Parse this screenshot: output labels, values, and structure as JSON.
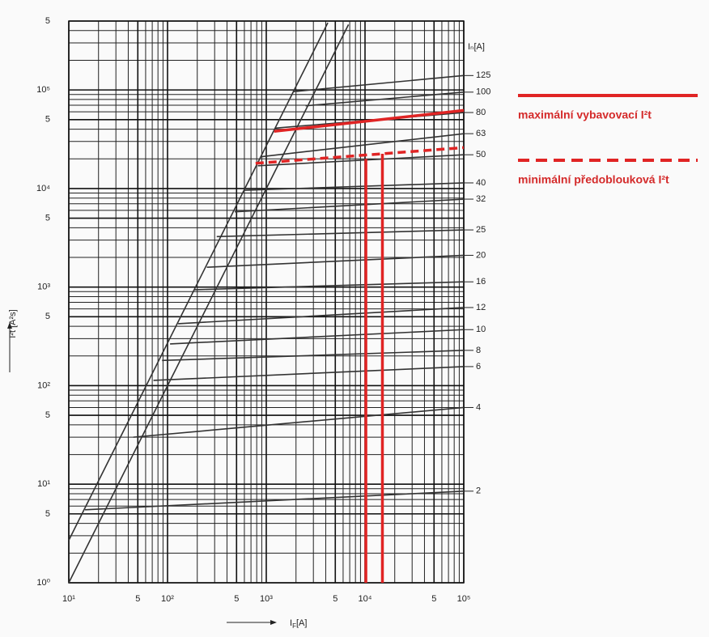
{
  "chart_data": {
    "type": "line",
    "log_x": true,
    "log_y": true,
    "grid": "minor",
    "y_label": "I²t [A²s]",
    "x_label": "I_F[A]",
    "series_title": "Iₙ[A]",
    "xlim": [
      10,
      100000
    ],
    "ylim": [
      1,
      500000
    ],
    "xticks": [
      {
        "value": 10,
        "label": "10¹"
      },
      {
        "value": 50,
        "label": "5"
      },
      {
        "value": 100,
        "label": "10²"
      },
      {
        "value": 500,
        "label": "5"
      },
      {
        "value": 1000,
        "label": "10³"
      },
      {
        "value": 5000,
        "label": "5"
      },
      {
        "value": 10000,
        "label": "10⁴"
      },
      {
        "value": 50000,
        "label": "5"
      },
      {
        "value": 100000,
        "label": "10⁵"
      }
    ],
    "yticks": [
      {
        "value": 1,
        "label": "10⁰"
      },
      {
        "value": 5,
        "label": "5"
      },
      {
        "value": 10,
        "label": "10¹"
      },
      {
        "value": 50,
        "label": "5"
      },
      {
        "value": 100,
        "label": "10²"
      },
      {
        "value": 500,
        "label": "5"
      },
      {
        "value": 1000,
        "label": "10³"
      },
      {
        "value": 5000,
        "label": "5"
      },
      {
        "value": 10000,
        "label": "10⁴"
      },
      {
        "value": 50000,
        "label": "5"
      },
      {
        "value": 100000,
        "label": "10⁵"
      },
      {
        "value": 500000,
        "label": "5"
      }
    ],
    "series": [
      {
        "x": [
          10,
          4200
        ],
        "values": [
          2.7,
          480000
        ],
        "color": "#333333",
        "style": "solid"
      },
      {
        "x": [
          10,
          6800
        ],
        "values": [
          1,
          460000
        ],
        "color": "#333333",
        "style": "solid"
      },
      {
        "name": "125",
        "x": [
          1860,
          100000
        ],
        "values": [
          96000,
          140000
        ],
        "color": "#333333",
        "style": "solid",
        "end_label": true
      },
      {
        "name": "100",
        "x": [
          2500,
          100000
        ],
        "values": [
          69000,
          95000
        ],
        "color": "#333333",
        "style": "solid",
        "end_label": true
      },
      {
        "name": "80",
        "x": [
          1230,
          100000
        ],
        "values": [
          41000,
          59000
        ],
        "color": "#333333",
        "style": "solid",
        "end_label": true
      },
      {
        "name": "63",
        "x": [
          880,
          100000
        ],
        "values": [
          21000,
          36000
        ],
        "color": "#333333",
        "style": "solid",
        "end_label": true
      },
      {
        "name": "50",
        "x": [
          820,
          100000
        ],
        "values": [
          17000,
          22000
        ],
        "color": "#333333",
        "style": "solid",
        "end_label": true
      },
      {
        "name": "40",
        "x": [
          600,
          100000
        ],
        "values": [
          9600,
          11400
        ],
        "color": "#333333",
        "style": "solid",
        "end_label": true
      },
      {
        "name": "32",
        "x": [
          480,
          100000
        ],
        "values": [
          5800,
          7800
        ],
        "color": "#333333",
        "style": "solid",
        "end_label": true
      },
      {
        "name": "25",
        "x": [
          315,
          100000
        ],
        "values": [
          3250,
          3800
        ],
        "color": "#333333",
        "style": "solid",
        "end_label": true
      },
      {
        "name": "20",
        "x": [
          250,
          100000
        ],
        "values": [
          1590,
          2100
        ],
        "color": "#333333",
        "style": "solid",
        "end_label": true
      },
      {
        "name": "16",
        "x": [
          187,
          100000
        ],
        "values": [
          940,
          1130
        ],
        "color": "#333333",
        "style": "solid",
        "end_label": true
      },
      {
        "name": "12",
        "x": [
          128,
          100000
        ],
        "values": [
          425,
          620
        ],
        "color": "#333333",
        "style": "solid",
        "end_label": true
      },
      {
        "name": "10",
        "x": [
          106,
          100000
        ],
        "values": [
          265,
          370
        ],
        "color": "#333333",
        "style": "solid",
        "end_label": true
      },
      {
        "name": "8",
        "x": [
          88,
          100000
        ],
        "values": [
          180,
          228
        ],
        "color": "#333333",
        "style": "solid",
        "end_label": true
      },
      {
        "name": "6",
        "x": [
          72,
          100000
        ],
        "values": [
          113,
          156
        ],
        "color": "#333333",
        "style": "solid",
        "end_label": true
      },
      {
        "name": "4",
        "x": [
          45,
          100000
        ],
        "values": [
          30,
          60
        ],
        "color": "#333333",
        "style": "solid",
        "end_label": true
      },
      {
        "name": "2",
        "x": [
          14.6,
          100000
        ],
        "values": [
          5.5,
          8.5
        ],
        "color": "#333333",
        "style": "solid",
        "end_label": true
      },
      {
        "name": "maximální vybavovací I²t",
        "x": [
          1200,
          100000
        ],
        "values": [
          38000,
          62000
        ],
        "color": "#e02424",
        "style": "solid",
        "legend": true
      },
      {
        "name": "minimální předoblouková I²t",
        "x": [
          780,
          100000
        ],
        "values": [
          18000,
          26000
        ],
        "color": "#e02424",
        "style": "dashed",
        "legend": true
      },
      {
        "x": [
          10200,
          10200
        ],
        "values": [
          1,
          20000
        ],
        "color": "#e02424",
        "style": "solid"
      },
      {
        "x": [
          15000,
          15000
        ],
        "values": [
          1,
          22500
        ],
        "color": "#e02424",
        "style": "solid"
      }
    ]
  }
}
